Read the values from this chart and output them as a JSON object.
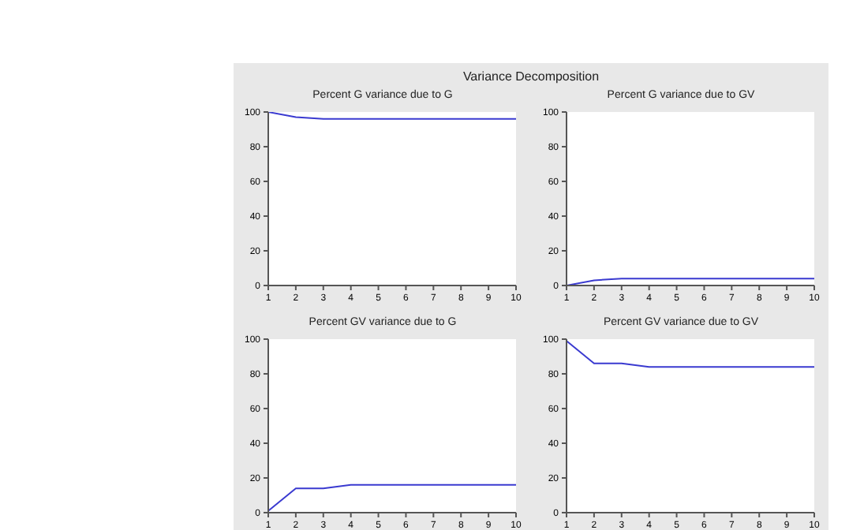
{
  "chart_data": [
    {
      "type": "line",
      "title": "Percent G variance due to G",
      "annotations": [
        "Variance Decomposition"
      ],
      "x": [
        1,
        2,
        3,
        4,
        5,
        6,
        7,
        8,
        9,
        10
      ],
      "series": [
        {
          "color": "#3a3ad0",
          "values": [
            100,
            97,
            96,
            96,
            96,
            96,
            96,
            96,
            96,
            96
          ]
        }
      ],
      "xlim": [
        1,
        10
      ],
      "xticks": [
        1,
        2,
        3,
        4,
        5,
        6,
        7,
        8,
        9,
        10
      ],
      "ylim": [
        0,
        100
      ],
      "yticks": [
        0,
        20,
        40,
        60,
        80,
        100
      ],
      "grid": false,
      "legend": false,
      "marker": "none",
      "line_style": "solid"
    },
    {
      "type": "line",
      "title": "Percent G variance due to GV",
      "x": [
        1,
        2,
        3,
        4,
        5,
        6,
        7,
        8,
        9,
        10
      ],
      "series": [
        {
          "color": "#3a3ad0",
          "values": [
            0,
            3,
            4,
            4,
            4,
            4,
            4,
            4,
            4,
            4
          ]
        }
      ],
      "xlim": [
        1,
        10
      ],
      "xticks": [
        1,
        2,
        3,
        4,
        5,
        6,
        7,
        8,
        9,
        10
      ],
      "ylim": [
        0,
        100
      ],
      "yticks": [
        0,
        20,
        40,
        60,
        80,
        100
      ],
      "grid": false,
      "legend": false,
      "marker": "none",
      "line_style": "solid"
    },
    {
      "type": "line",
      "title": "Percent GV variance due to G",
      "x": [
        1,
        2,
        3,
        4,
        5,
        6,
        7,
        8,
        9,
        10
      ],
      "series": [
        {
          "color": "#3a3ad0",
          "values": [
            1,
            14,
            14,
            16,
            16,
            16,
            16,
            16,
            16,
            16
          ]
        }
      ],
      "xlim": [
        1,
        10
      ],
      "xticks": [
        1,
        2,
        3,
        4,
        5,
        6,
        7,
        8,
        9,
        10
      ],
      "ylim": [
        0,
        100
      ],
      "yticks": [
        0,
        20,
        40,
        60,
        80,
        100
      ],
      "grid": false,
      "legend": false,
      "marker": "none",
      "line_style": "solid"
    },
    {
      "type": "line",
      "title": "Percent GV variance due to GV",
      "x": [
        1,
        2,
        3,
        4,
        5,
        6,
        7,
        8,
        9,
        10
      ],
      "series": [
        {
          "color": "#3a3ad0",
          "values": [
            99,
            86,
            86,
            84,
            84,
            84,
            84,
            84,
            84,
            84
          ]
        }
      ],
      "xlim": [
        1,
        10
      ],
      "xticks": [
        1,
        2,
        3,
        4,
        5,
        6,
        7,
        8,
        9,
        10
      ],
      "ylim": [
        0,
        100
      ],
      "yticks": [
        0,
        20,
        40,
        60,
        80,
        100
      ],
      "grid": false,
      "legend": false,
      "marker": "none",
      "line_style": "solid"
    }
  ]
}
